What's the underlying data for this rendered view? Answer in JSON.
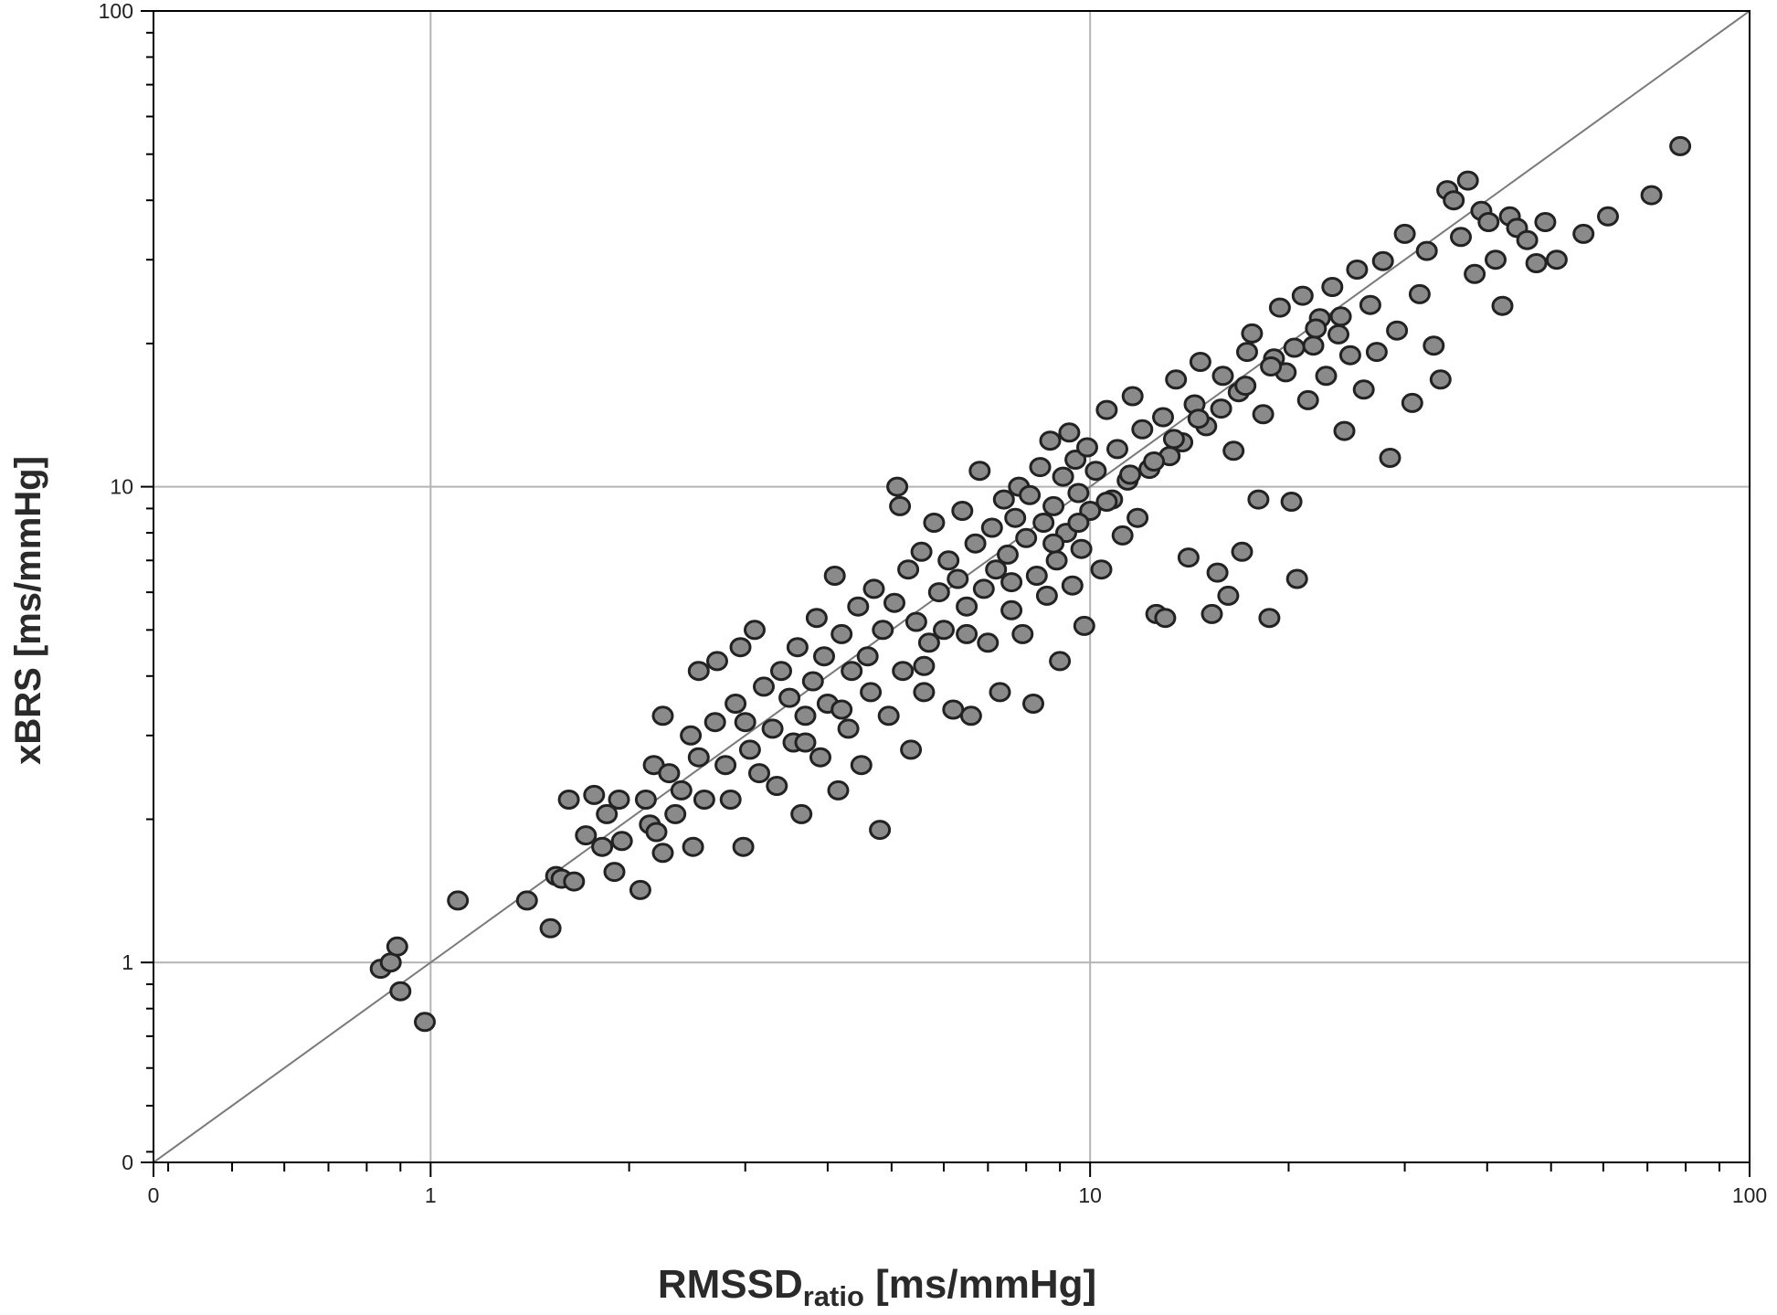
{
  "chart_data": {
    "type": "scatter",
    "title": "",
    "xlabel": {
      "main": "RMSSD",
      "sub": "ratio",
      "unit": " [ms/mmHg]"
    },
    "ylabel": "xBRS  [ms/mmHg]",
    "x_scale": "log",
    "y_scale": "log",
    "xlim": [
      0.38,
      100
    ],
    "ylim": [
      0.38,
      100
    ],
    "x_ticks": [
      {
        "value": 0.38,
        "label": "0"
      },
      {
        "value": 1,
        "label": "1"
      },
      {
        "value": 10,
        "label": "10"
      },
      {
        "value": 100,
        "label": "100"
      }
    ],
    "y_ticks": [
      {
        "value": 0.38,
        "label": "0"
      },
      {
        "value": 1,
        "label": "1"
      },
      {
        "value": 10,
        "label": "10"
      },
      {
        "value": 100,
        "label": "100"
      }
    ],
    "grid": true,
    "reference_line": "y = x",
    "marker_color": "#8a8a8a",
    "marker_edge_color": "#222222",
    "series": [
      {
        "points": [
          [
            0.84,
            0.97
          ],
          [
            0.87,
            1.0
          ],
          [
            0.89,
            1.08
          ],
          [
            0.9,
            0.87
          ],
          [
            0.98,
            0.75
          ],
          [
            1.1,
            1.35
          ],
          [
            1.4,
            1.35
          ],
          [
            1.52,
            1.18
          ],
          [
            1.55,
            1.52
          ],
          [
            1.58,
            1.5
          ],
          [
            1.62,
            2.2
          ],
          [
            1.65,
            1.48
          ],
          [
            1.72,
            1.85
          ],
          [
            1.77,
            2.25
          ],
          [
            1.82,
            1.75
          ],
          [
            1.85,
            2.05
          ],
          [
            1.9,
            1.55
          ],
          [
            1.95,
            1.8
          ],
          [
            1.93,
            2.2
          ],
          [
            2.08,
            1.42
          ],
          [
            2.12,
            2.2
          ],
          [
            2.15,
            1.95
          ],
          [
            2.2,
            1.88
          ],
          [
            2.25,
            1.7
          ],
          [
            2.18,
            2.6
          ],
          [
            2.3,
            2.5
          ],
          [
            2.35,
            2.05
          ],
          [
            2.25,
            3.3
          ],
          [
            2.4,
            2.3
          ],
          [
            2.5,
            1.75
          ],
          [
            2.48,
            3.0
          ],
          [
            2.55,
            4.1
          ],
          [
            2.55,
            2.7
          ],
          [
            2.6,
            2.2
          ],
          [
            2.7,
            3.2
          ],
          [
            2.72,
            4.3
          ],
          [
            2.8,
            2.6
          ],
          [
            2.85,
            2.2
          ],
          [
            2.9,
            3.5
          ],
          [
            2.95,
            4.6
          ],
          [
            2.98,
            1.75
          ],
          [
            3.0,
            3.2
          ],
          [
            3.05,
            2.8
          ],
          [
            3.1,
            5.0
          ],
          [
            3.15,
            2.5
          ],
          [
            3.2,
            3.8
          ],
          [
            3.3,
            3.1
          ],
          [
            3.35,
            2.35
          ],
          [
            3.4,
            4.1
          ],
          [
            3.5,
            3.6
          ],
          [
            3.55,
            2.9
          ],
          [
            3.6,
            4.6
          ],
          [
            3.65,
            2.05
          ],
          [
            3.7,
            3.3
          ],
          [
            3.8,
            3.9
          ],
          [
            3.85,
            5.3
          ],
          [
            3.9,
            2.7
          ],
          [
            3.95,
            4.4
          ],
          [
            4.0,
            3.5
          ],
          [
            4.1,
            6.5
          ],
          [
            4.15,
            2.3
          ],
          [
            4.2,
            4.9
          ],
          [
            4.3,
            3.1
          ],
          [
            4.35,
            4.1
          ],
          [
            4.45,
            5.6
          ],
          [
            4.5,
            2.6
          ],
          [
            4.6,
            4.4
          ],
          [
            4.65,
            3.7
          ],
          [
            4.7,
            6.1
          ],
          [
            4.8,
            1.9
          ],
          [
            4.85,
            5.0
          ],
          [
            4.95,
            3.3
          ],
          [
            5.05,
            5.7
          ],
          [
            5.1,
            10.0
          ],
          [
            5.15,
            9.1
          ],
          [
            5.2,
            4.1
          ],
          [
            5.3,
            6.7
          ],
          [
            5.35,
            2.8
          ],
          [
            5.45,
            5.2
          ],
          [
            5.55,
            7.3
          ],
          [
            5.6,
            3.7
          ],
          [
            5.7,
            4.7
          ],
          [
            5.8,
            8.4
          ],
          [
            5.9,
            6.0
          ],
          [
            6.0,
            5.0
          ],
          [
            6.1,
            7.0
          ],
          [
            6.2,
            3.4
          ],
          [
            6.3,
            6.4
          ],
          [
            6.4,
            8.9
          ],
          [
            6.5,
            5.6
          ],
          [
            6.6,
            3.3
          ],
          [
            6.7,
            7.6
          ],
          [
            6.8,
            10.8
          ],
          [
            6.9,
            6.1
          ],
          [
            7.0,
            4.7
          ],
          [
            7.1,
            8.2
          ],
          [
            7.2,
            6.7
          ],
          [
            7.3,
            3.7
          ],
          [
            7.4,
            9.4
          ],
          [
            7.5,
            7.2
          ],
          [
            7.6,
            5.5
          ],
          [
            7.7,
            8.6
          ],
          [
            7.8,
            10.0
          ],
          [
            7.9,
            4.9
          ],
          [
            8.0,
            7.8
          ],
          [
            8.1,
            9.6
          ],
          [
            8.2,
            3.5
          ],
          [
            8.3,
            6.5
          ],
          [
            8.4,
            11.0
          ],
          [
            8.5,
            8.4
          ],
          [
            8.6,
            5.9
          ],
          [
            8.7,
            12.5
          ],
          [
            8.8,
            9.1
          ],
          [
            8.9,
            7.0
          ],
          [
            9.0,
            4.3
          ],
          [
            9.1,
            10.5
          ],
          [
            9.2,
            8.0
          ],
          [
            9.3,
            13.0
          ],
          [
            9.4,
            6.2
          ],
          [
            9.5,
            11.4
          ],
          [
            9.6,
            9.7
          ],
          [
            9.7,
            7.4
          ],
          [
            9.8,
            5.1
          ],
          [
            9.9,
            12.1
          ],
          [
            10.0,
            8.9
          ],
          [
            10.2,
            10.8
          ],
          [
            10.4,
            6.7
          ],
          [
            10.6,
            14.5
          ],
          [
            10.8,
            9.4
          ],
          [
            11.0,
            12.0
          ],
          [
            11.2,
            7.9
          ],
          [
            11.4,
            10.3
          ],
          [
            11.6,
            15.5
          ],
          [
            11.8,
            8.6
          ],
          [
            12.0,
            13.2
          ],
          [
            12.3,
            10.9
          ],
          [
            12.6,
            5.4
          ],
          [
            12.9,
            14.0
          ],
          [
            13.2,
            11.6
          ],
          [
            13.0,
            5.3
          ],
          [
            13.5,
            16.8
          ],
          [
            13.8,
            12.4
          ],
          [
            14.1,
            7.1
          ],
          [
            14.4,
            14.9
          ],
          [
            14.7,
            18.3
          ],
          [
            15.0,
            13.4
          ],
          [
            15.3,
            5.4
          ],
          [
            15.6,
            6.6
          ],
          [
            15.9,
            17.1
          ],
          [
            16.2,
            5.9
          ],
          [
            16.5,
            11.9
          ],
          [
            16.8,
            15.8
          ],
          [
            17.0,
            7.3
          ],
          [
            17.3,
            19.2
          ],
          [
            17.6,
            21.0
          ],
          [
            18.0,
            9.4
          ],
          [
            18.3,
            14.2
          ],
          [
            18.7,
            5.3
          ],
          [
            19.0,
            18.6
          ],
          [
            19.4,
            23.8
          ],
          [
            19.8,
            17.4
          ],
          [
            20.2,
            9.3
          ],
          [
            20.6,
            6.4
          ],
          [
            21.0,
            25.2
          ],
          [
            21.4,
            15.2
          ],
          [
            21.8,
            19.8
          ],
          [
            22.3,
            22.6
          ],
          [
            22.8,
            17.1
          ],
          [
            23.3,
            26.3
          ],
          [
            23.8,
            20.9
          ],
          [
            24.3,
            13.1
          ],
          [
            24.8,
            18.9
          ],
          [
            25.4,
            28.6
          ],
          [
            26.0,
            16.0
          ],
          [
            26.6,
            24.1
          ],
          [
            27.2,
            19.2
          ],
          [
            27.8,
            29.8
          ],
          [
            28.5,
            11.5
          ],
          [
            29.2,
            21.3
          ],
          [
            30.0,
            34.0
          ],
          [
            30.8,
            15.0
          ],
          [
            31.6,
            25.4
          ],
          [
            32.4,
            31.3
          ],
          [
            33.2,
            19.8
          ],
          [
            34.0,
            16.8
          ],
          [
            34.8,
            42.0
          ],
          [
            35.6,
            40.0
          ],
          [
            36.5,
            33.5
          ],
          [
            37.4,
            44.0
          ],
          [
            38.3,
            28.0
          ],
          [
            39.2,
            38.0
          ],
          [
            40.2,
            36.0
          ],
          [
            41.2,
            30.0
          ],
          [
            42.2,
            24.0
          ],
          [
            43.3,
            37.0
          ],
          [
            44.4,
            35.0
          ],
          [
            46.0,
            33.0
          ],
          [
            47.5,
            29.5
          ],
          [
            49.0,
            36.0
          ],
          [
            51.0,
            30.0
          ],
          [
            56.0,
            34.0
          ],
          [
            61.0,
            37.0
          ],
          [
            71.0,
            41.0
          ],
          [
            78.5,
            52.0
          ],
          [
            6.5,
            4.9
          ],
          [
            5.6,
            4.2
          ],
          [
            4.2,
            3.4
          ],
          [
            3.7,
            2.9
          ],
          [
            7.6,
            6.3
          ],
          [
            8.8,
            7.6
          ],
          [
            9.6,
            8.4
          ],
          [
            10.6,
            9.3
          ],
          [
            11.5,
            10.6
          ],
          [
            12.5,
            11.3
          ],
          [
            13.4,
            12.6
          ],
          [
            14.6,
            13.9
          ],
          [
            15.8,
            14.6
          ],
          [
            17.2,
            16.3
          ],
          [
            18.8,
            17.9
          ],
          [
            20.4,
            19.6
          ],
          [
            22.0,
            21.5
          ],
          [
            24.0,
            22.8
          ]
        ]
      }
    ]
  }
}
